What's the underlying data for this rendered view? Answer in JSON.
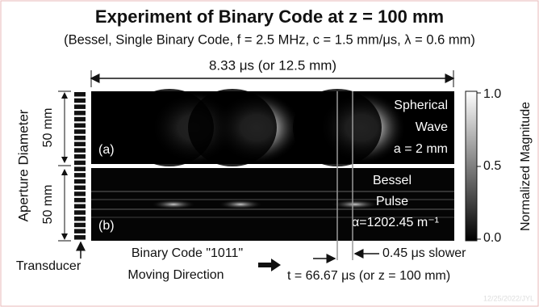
{
  "header": {
    "title": "Experiment of Binary Code at z = 100 mm",
    "subtitle": "(Bessel, Single Binary Code, f = 2.5 MHz, c = 1.5 mm/μs, λ = 0.6 mm)"
  },
  "span_label": "8.33 μs (or 12.5 mm)",
  "y_axis_label": "Aperture Diameter",
  "panels": [
    {
      "tag": "(a)",
      "label_lines": [
        "Spherical",
        "Wave",
        "a = 2 mm"
      ],
      "size": "50 mm"
    },
    {
      "tag": "(b)",
      "label_lines": [
        "Bessel",
        "Pulse",
        "α=1202.45 m⁻¹"
      ],
      "size": "50 mm"
    }
  ],
  "colorbar": {
    "label": "Normalized Magnitude",
    "ticks": [
      "1.0",
      "0.5",
      "0.0"
    ]
  },
  "transducer_label": "Transducer",
  "direction_lines": [
    "Binary Code \"1011\"",
    "Moving Direction"
  ],
  "delay_label": "0.45 μs slower",
  "time_label": "t = 66.67 μs (or z = 100 mm)",
  "watermark": "12/25/2022/JYL"
}
